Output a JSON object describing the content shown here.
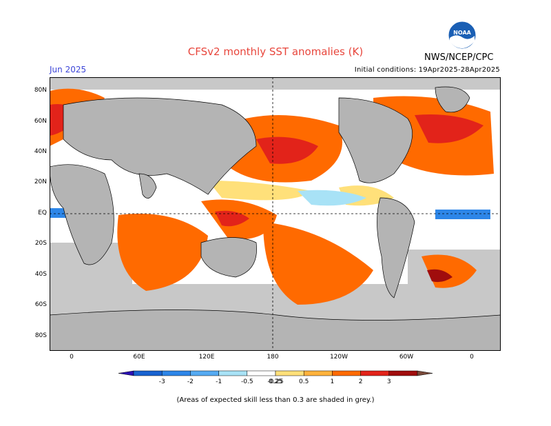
{
  "title": "CFSv2 monthly SST anomalies (K)",
  "period": "Jun 2025",
  "initial_conditions": "Initial conditions: 19Apr2025-28Apr2025",
  "agency": "NWS/NCEP/CPC",
  "logo_text": "NOAA",
  "footnote": "(Areas of expected skill less than 0.3 are shaded in grey.)",
  "lat_labels": [
    "80N",
    "60N",
    "40N",
    "20N",
    "EQ",
    "20S",
    "40S",
    "60S",
    "80S"
  ],
  "lon_labels": [
    "0",
    "60E",
    "120E",
    "180",
    "120W",
    "60W",
    "0"
  ],
  "legend": {
    "labels": [
      "-3",
      "-2",
      "-1",
      "-0.5",
      "-0.25",
      "0.25",
      "0.5",
      "1",
      "2",
      "3"
    ],
    "colors": [
      "#2b0fb4",
      "#1862d0",
      "#2d86e8",
      "#55aaf2",
      "#a8e2f6",
      "#ffffff",
      "#ffe07a",
      "#ffb23c",
      "#ff6a00",
      "#e2231a",
      "#a00d0d",
      "#7a4a3a"
    ]
  },
  "colors": {
    "ocean_neutral": "#ffffff",
    "low_skill_grey": "#c8c8c8",
    "land": "#b4b4b4"
  }
}
